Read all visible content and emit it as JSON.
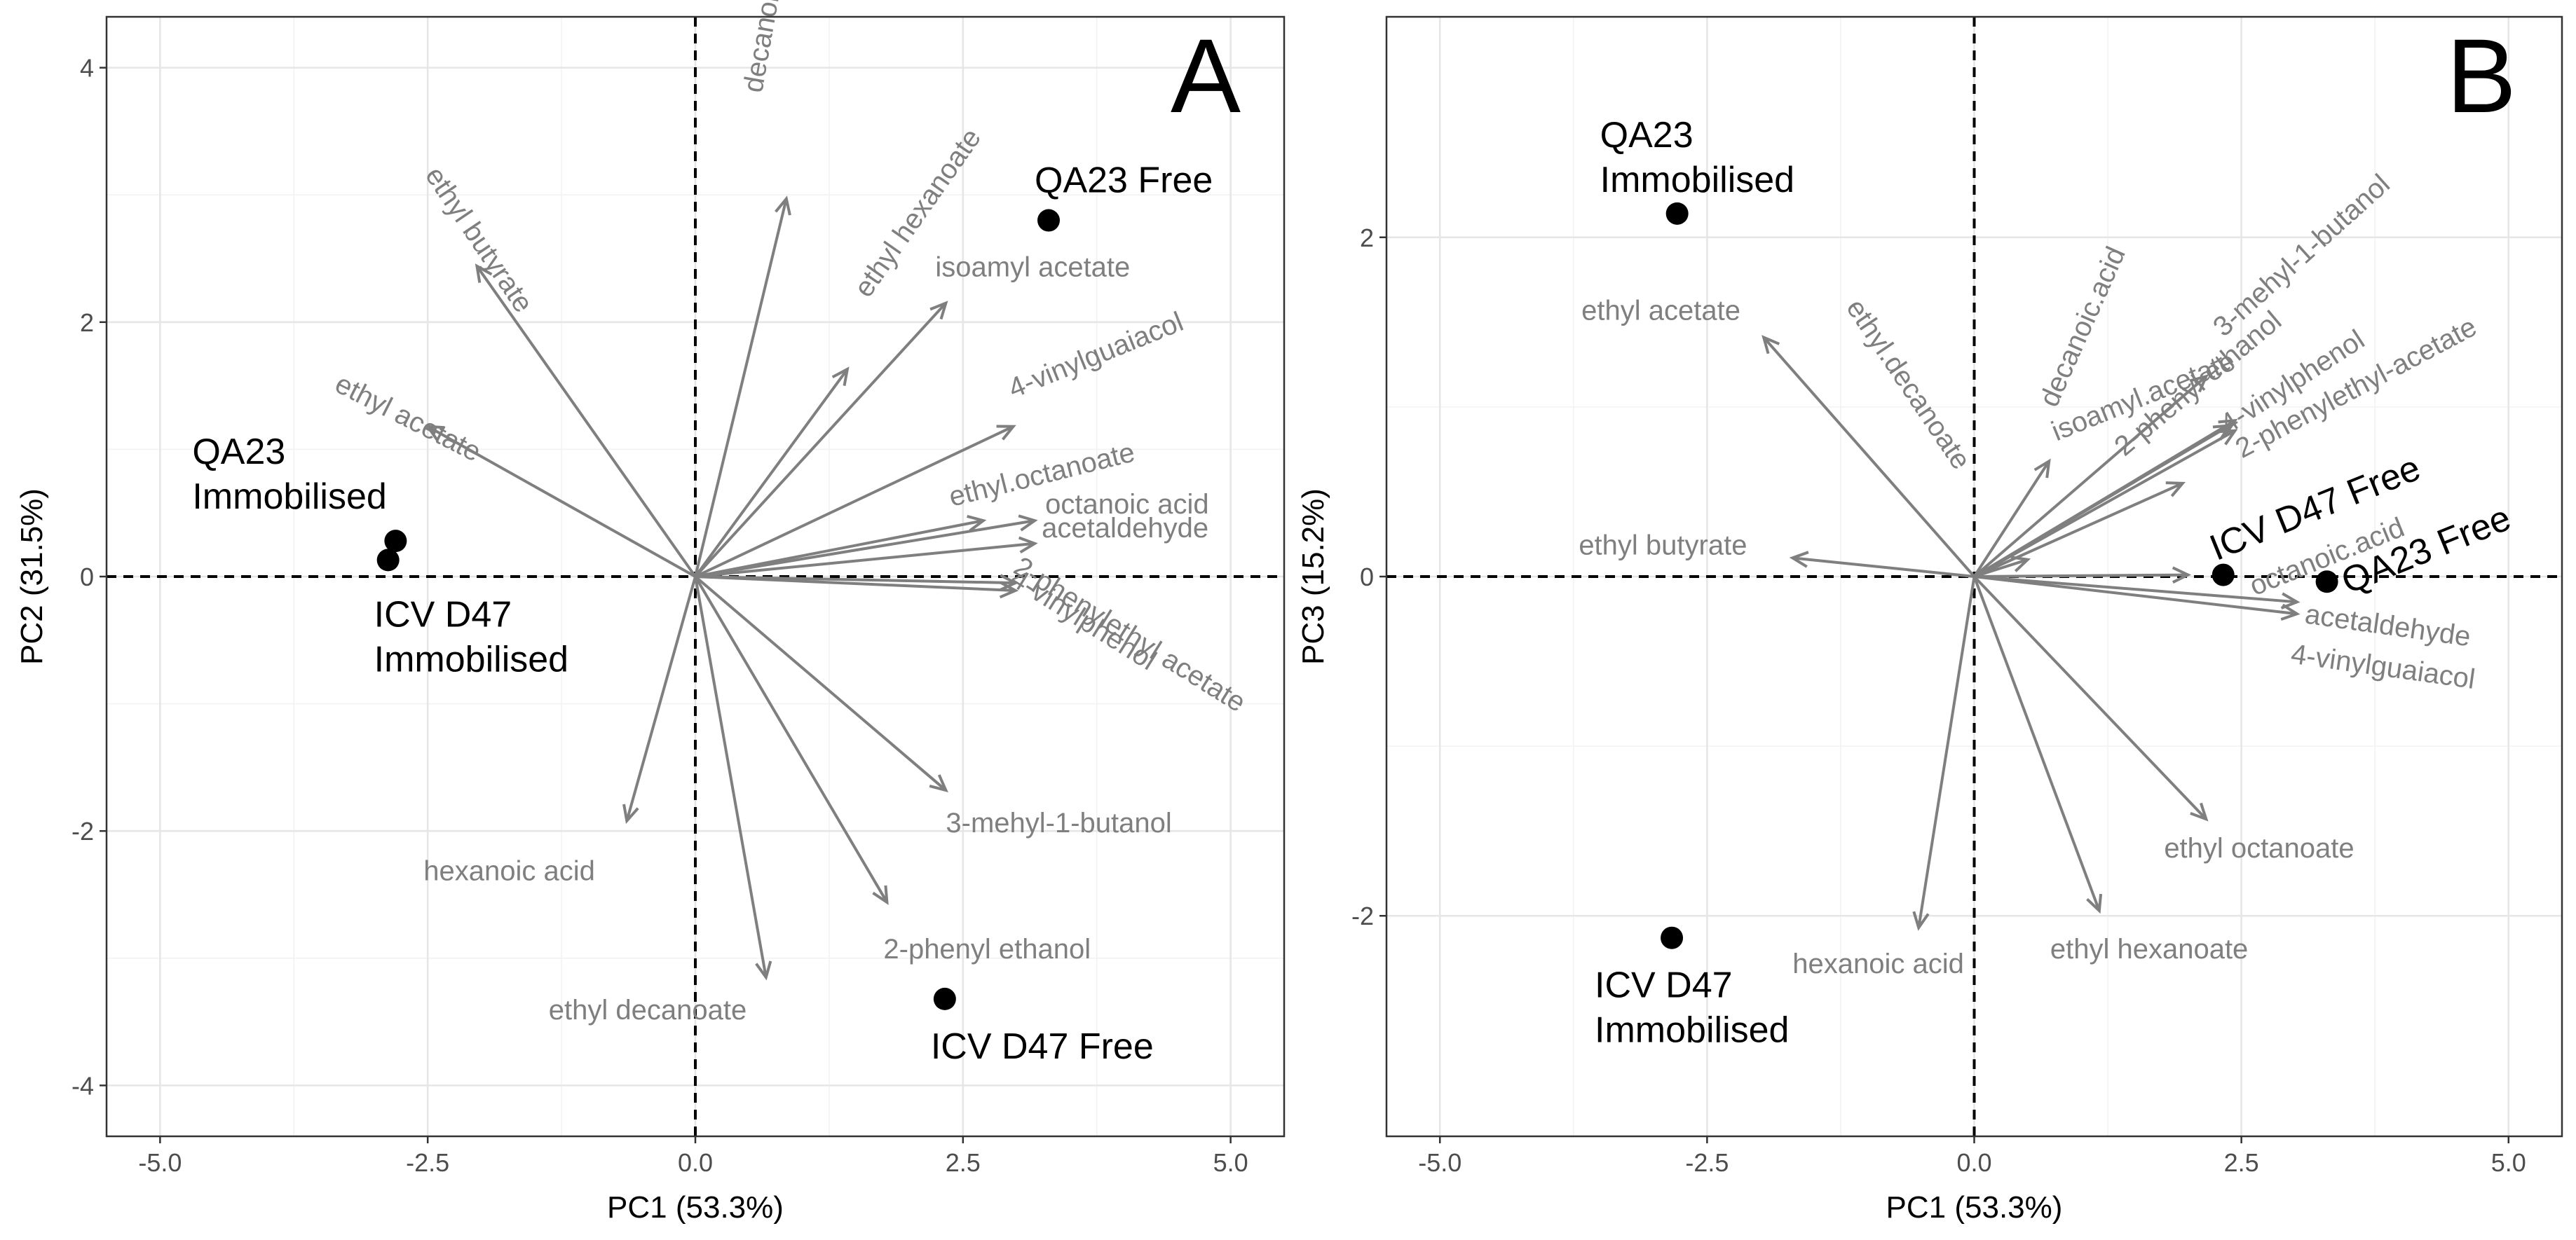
{
  "chart_data": [
    {
      "type": "scatter",
      "subtype": "biplot",
      "panel": "A",
      "xlabel": "PC1 (53.3%)",
      "ylabel": "PC2 (31.5%)",
      "xlim": [
        -5.5,
        5.5
      ],
      "ylim": [
        -4.4,
        4.4
      ],
      "x_ticks": [
        -5.0,
        -2.5,
        0.0,
        2.5,
        5.0
      ],
      "x_tick_labels": [
        "-5.0",
        "-2.5",
        "0.0",
        "2.5",
        "5.0"
      ],
      "y_ticks": [
        -4,
        -2,
        0,
        2,
        4
      ],
      "y_tick_labels": [
        "-4",
        "-2",
        "0",
        "2",
        "4"
      ],
      "grid": true,
      "zero_lines": true,
      "samples": [
        {
          "label": "QA23 Free",
          "x": 3.3,
          "y": 2.8
        },
        {
          "label": "QA23\nImmobilised",
          "x": -2.8,
          "y": 0.28
        },
        {
          "label": "ICV D47\nImmobilised",
          "x": -2.87,
          "y": 0.13
        },
        {
          "label": "ICV D47 Free",
          "x": 2.33,
          "y": -3.32
        }
      ],
      "loadings": [
        {
          "label": "decanoic acid",
          "x": 0.85,
          "y": 2.97
        },
        {
          "label": "ethyl butyrate",
          "x": -2.04,
          "y": 2.44
        },
        {
          "label": "ethyl hexanoate",
          "x": 1.42,
          "y": 1.63
        },
        {
          "label": "isoamyl acetate",
          "x": 2.34,
          "y": 2.15
        },
        {
          "label": "ethyl acetate",
          "x": -2.5,
          "y": 1.18
        },
        {
          "label": "4-vinylguaiacol",
          "x": 2.97,
          "y": 1.18
        },
        {
          "label": "ethyl.octanoate",
          "x": 2.69,
          "y": 0.44
        },
        {
          "label": "octanoic acid",
          "x": 3.17,
          "y": 0.44
        },
        {
          "label": "acetaldehyde",
          "x": 3.17,
          "y": 0.26
        },
        {
          "label": "2-phenylethyl acetate",
          "x": 2.99,
          "y": -0.05
        },
        {
          "label": "4-vinylphenol",
          "x": 2.99,
          "y": -0.11
        },
        {
          "label": "3-mehyl-1-butanol",
          "x": 2.34,
          "y": -1.68
        },
        {
          "label": "hexanoic acid",
          "x": -0.64,
          "y": -1.92
        },
        {
          "label": "2-phenyl ethanol",
          "x": 1.79,
          "y": -2.56
        },
        {
          "label": "ethyl decanoate",
          "x": 0.66,
          "y": -3.15
        }
      ]
    },
    {
      "type": "scatter",
      "subtype": "biplot",
      "panel": "B",
      "xlabel": "PC1 (53.3%)",
      "ylabel": "PC3 (15.2%)",
      "xlim": [
        -5.5,
        5.5
      ],
      "ylim": [
        -3.3,
        3.3
      ],
      "x_ticks": [
        -5.0,
        -2.5,
        0.0,
        2.5,
        5.0
      ],
      "x_tick_labels": [
        "-5.0",
        "-2.5",
        "0.0",
        "2.5",
        "5.0"
      ],
      "y_ticks": [
        -2,
        0,
        2
      ],
      "y_tick_labels": [
        "-2",
        "0",
        "2"
      ],
      "grid": true,
      "zero_lines": true,
      "samples": [
        {
          "label": "QA23\nImmobilised",
          "x": -2.78,
          "y": 2.14
        },
        {
          "label": "ICV D47 Free",
          "x": 2.33,
          "y": 0.01
        },
        {
          "label": "QA23 Free",
          "x": 3.3,
          "y": -0.03
        },
        {
          "label": "ICV D47\nImmobilised",
          "x": -2.83,
          "y": -2.13
        }
      ],
      "loadings": [
        {
          "label": "ethyl acetate",
          "x": -1.97,
          "y": 1.41
        },
        {
          "label": "ethyl.decanoate",
          "x": 0.5,
          "y": 0.1
        },
        {
          "label": "decanoic.acid",
          "x": 0.7,
          "y": 0.68
        },
        {
          "label": "3-mehyl-1-butanol",
          "x": 2.17,
          "y": 1.18
        },
        {
          "label": "2-phenyl ethanol",
          "x": 2.39,
          "y": 0.89
        },
        {
          "label": "4-vinylphenol",
          "x": 2.44,
          "y": 0.92
        },
        {
          "label": "2-phenylethyl-acetate",
          "x": 2.44,
          "y": 0.86
        },
        {
          "label": "isoamyl.acetate",
          "x": 1.95,
          "y": 0.55
        },
        {
          "label": "octanoic.acid",
          "x": 2.0,
          "y": 0.01
        },
        {
          "label": "ethyl butyrate",
          "x": -1.7,
          "y": 0.11
        },
        {
          "label": "acetaldehyde",
          "x": 3.02,
          "y": -0.15
        },
        {
          "label": "4-vinylguaiacol",
          "x": 3.02,
          "y": -0.22
        },
        {
          "label": "ethyl octanoate",
          "x": 2.17,
          "y": -1.43
        },
        {
          "label": "hexanoic acid",
          "x": -0.52,
          "y": -2.07
        },
        {
          "label": "ethyl hexanoate",
          "x": 1.17,
          "y": -1.97
        }
      ]
    }
  ]
}
